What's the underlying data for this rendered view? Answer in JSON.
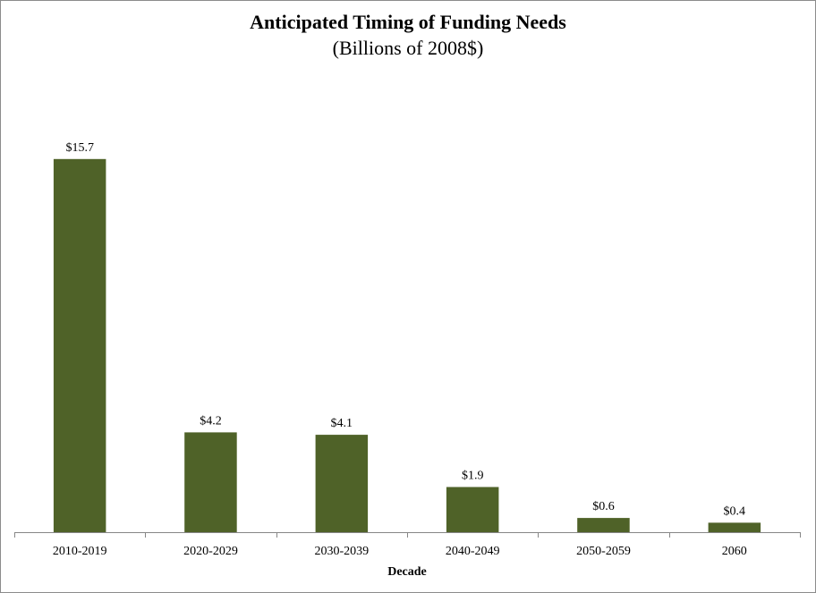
{
  "chart_data": {
    "type": "bar",
    "title": "Anticipated Timing of Funding Needs",
    "subtitle": "(Billions of 2008$)",
    "xlabel": "Decade",
    "ylabel": "",
    "categories": [
      "2010-2019",
      "2020-2029",
      "2030-2039",
      "2040-2049",
      "2050-2059",
      "2060"
    ],
    "values": [
      15.7,
      4.2,
      4.1,
      1.9,
      0.6,
      0.4
    ],
    "data_labels": [
      "$15.7",
      "$4.2",
      "$4.1",
      "$1.9",
      "$0.6",
      "$0.4"
    ],
    "ylim": [
      0,
      17.5
    ],
    "grid": false,
    "legend": "none",
    "bar_color": "#4f6228"
  }
}
